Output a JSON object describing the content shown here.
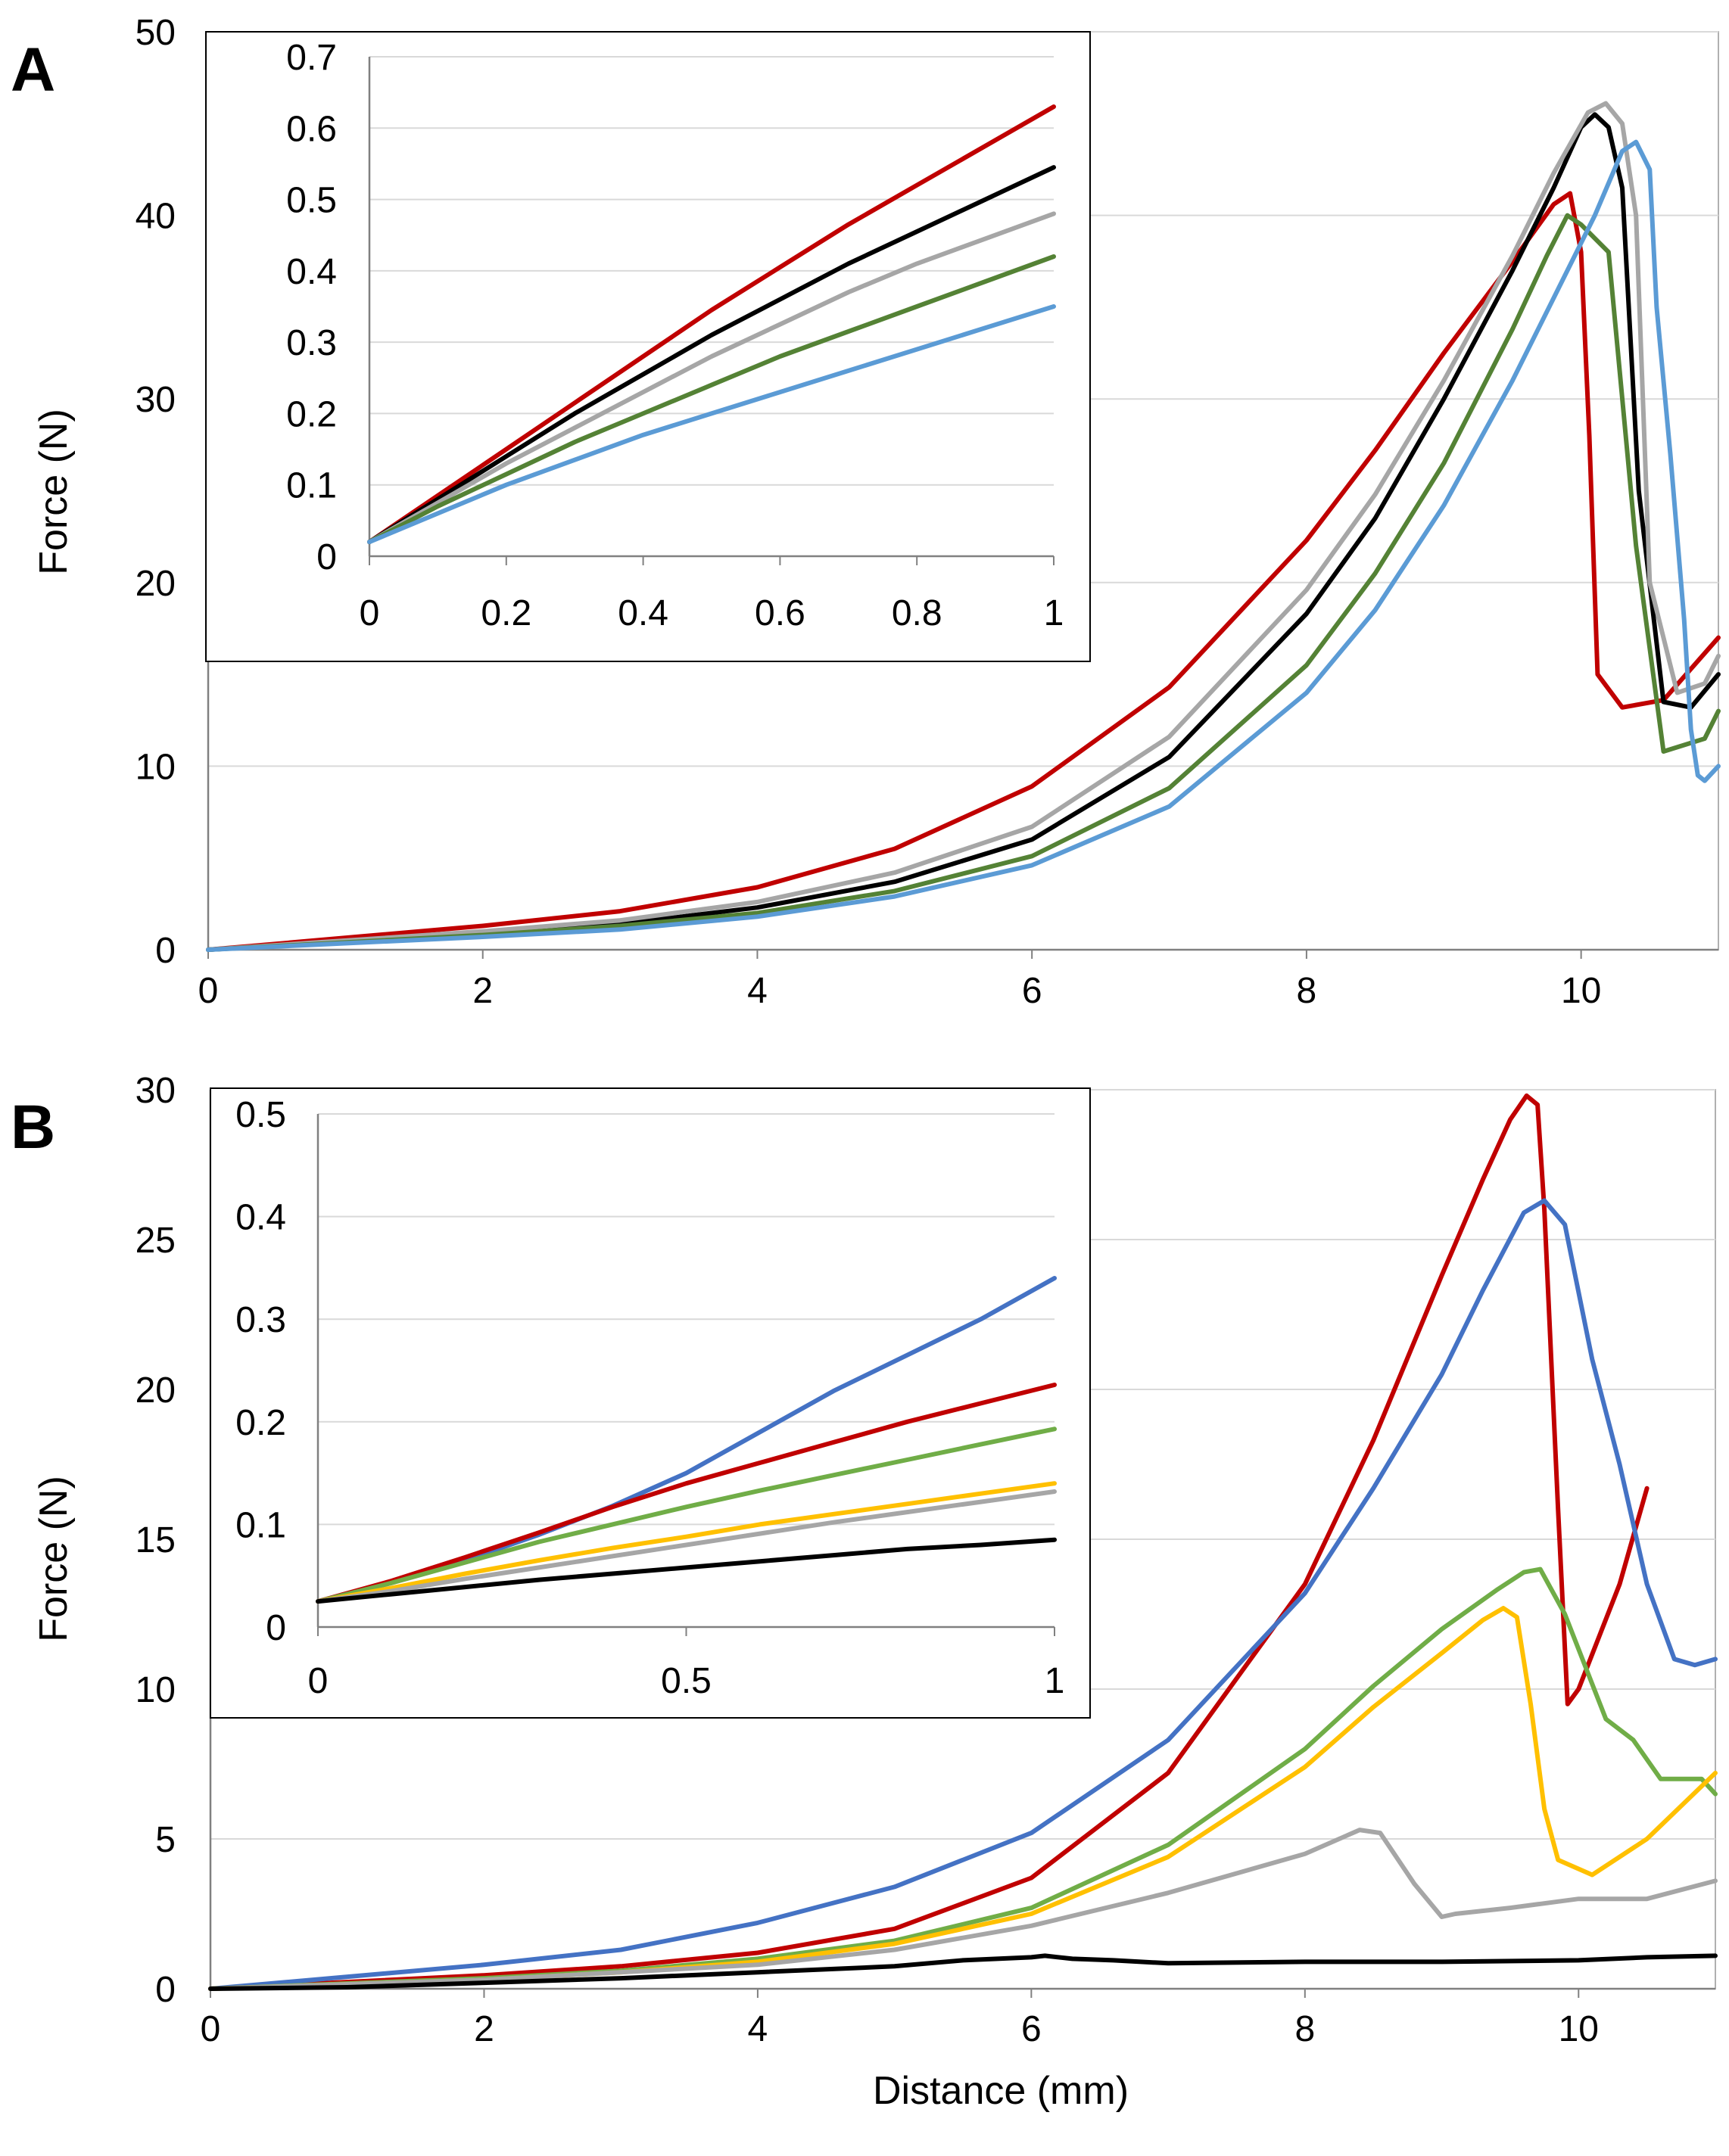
{
  "figure": {
    "panel_a_letter": "A",
    "panel_b_letter": "B"
  },
  "chart_data": [
    {
      "id": "A-main",
      "type": "line",
      "xlabel": "",
      "ylabel": "Force (N)",
      "xlim": [
        0,
        11
      ],
      "ylim": [
        0,
        50
      ],
      "xticks": [
        0,
        2,
        4,
        6,
        8,
        10
      ],
      "yticks": [
        0,
        10,
        20,
        30,
        40,
        50
      ],
      "xtick_labels": [
        "0",
        "2",
        "4",
        "6",
        "8",
        "10"
      ],
      "ytick_labels": [
        "0",
        "10",
        "20",
        "30",
        "40",
        "50"
      ],
      "grid": "horizontal",
      "series": [
        {
          "name": "red",
          "color": "#c00000",
          "x": [
            0,
            2,
            3,
            4,
            5,
            6,
            7,
            8,
            8.5,
            9,
            9.5,
            9.8,
            9.92,
            10.0,
            10.06,
            10.12,
            10.3,
            10.6,
            11
          ],
          "y": [
            0,
            1.3,
            2.1,
            3.4,
            5.5,
            8.9,
            14.3,
            22.3,
            27.2,
            32.5,
            37.5,
            40.6,
            41.2,
            38,
            28,
            15,
            13.2,
            13.6,
            17
          ]
        },
        {
          "name": "black",
          "color": "#000000",
          "x": [
            0,
            2,
            3,
            4,
            5,
            6,
            7,
            8,
            8.5,
            9,
            9.5,
            9.8,
            10.0,
            10.1,
            10.2,
            10.3,
            10.42,
            10.6,
            10.8,
            11
          ],
          "y": [
            0,
            0.9,
            1.4,
            2.3,
            3.7,
            6.0,
            10.5,
            18.3,
            23.5,
            30.0,
            37.0,
            41.5,
            44.8,
            45.5,
            44.8,
            41.5,
            25,
            13.5,
            13.2,
            15
          ]
        },
        {
          "name": "gray",
          "color": "#a6a6a6",
          "x": [
            0,
            2,
            3,
            4,
            5,
            6,
            7,
            8,
            8.5,
            9,
            9.5,
            9.8,
            10.05,
            10.18,
            10.3,
            10.4,
            10.5,
            10.7,
            10.9,
            11
          ],
          "y": [
            0,
            1.0,
            1.6,
            2.6,
            4.2,
            6.7,
            11.6,
            19.6,
            24.8,
            31.0,
            37.8,
            42.3,
            45.6,
            46.1,
            45.0,
            40,
            20,
            14.0,
            14.5,
            16
          ]
        },
        {
          "name": "green",
          "color": "#548235",
          "x": [
            0,
            2,
            3,
            4,
            5,
            6,
            7,
            8,
            8.5,
            9,
            9.5,
            9.75,
            9.9,
            10.0,
            10.2,
            10.4,
            10.6,
            10.9,
            11
          ],
          "y": [
            0,
            0.8,
            1.3,
            2.0,
            3.2,
            5.1,
            8.8,
            15.5,
            20.5,
            26.5,
            33.8,
            37.8,
            40.0,
            39.5,
            38,
            22,
            10.8,
            11.5,
            13
          ]
        },
        {
          "name": "light-blue",
          "color": "#5b9bd5",
          "x": [
            0,
            2,
            3,
            4,
            5,
            6,
            7,
            8,
            8.5,
            9,
            9.5,
            9.8,
            10.1,
            10.3,
            10.4,
            10.5,
            10.55,
            10.65,
            10.75,
            10.8,
            10.85,
            10.9,
            11
          ],
          "y": [
            0,
            0.7,
            1.1,
            1.8,
            2.9,
            4.6,
            7.8,
            14.0,
            18.5,
            24.2,
            31.0,
            35.5,
            40.0,
            43.5,
            44.0,
            42.5,
            35,
            27,
            18,
            12,
            9.5,
            9.2,
            10
          ]
        }
      ]
    },
    {
      "id": "A-inset",
      "type": "line",
      "xlim": [
        0,
        1
      ],
      "ylim": [
        0,
        0.7
      ],
      "xticks": [
        0,
        0.2,
        0.4,
        0.6,
        0.8,
        1
      ],
      "yticks": [
        0,
        0.1,
        0.2,
        0.3,
        0.4,
        0.5,
        0.6,
        0.7
      ],
      "xtick_labels": [
        "0",
        "0.2",
        "0.4",
        "0.6",
        "0.8",
        "1"
      ],
      "ytick_labels": [
        "0",
        "0.1",
        "0.2",
        "0.3",
        "0.4",
        "0.5",
        "0.6",
        "0.7"
      ],
      "grid": "horizontal",
      "series": [
        {
          "name": "red",
          "color": "#c00000",
          "x": [
            0,
            0.1,
            0.2,
            0.3,
            0.4,
            0.5,
            0.6,
            0.7,
            0.8,
            0.9,
            1.0
          ],
          "y": [
            0.02,
            0.085,
            0.15,
            0.215,
            0.28,
            0.345,
            0.405,
            0.465,
            0.52,
            0.575,
            0.63
          ]
        },
        {
          "name": "black",
          "color": "#000000",
          "x": [
            0,
            0.1,
            0.2,
            0.3,
            0.4,
            0.5,
            0.6,
            0.7,
            0.8,
            0.9,
            1.0
          ],
          "y": [
            0.02,
            0.08,
            0.14,
            0.2,
            0.255,
            0.31,
            0.36,
            0.41,
            0.455,
            0.5,
            0.545
          ]
        },
        {
          "name": "gray",
          "color": "#a6a6a6",
          "x": [
            0,
            0.1,
            0.2,
            0.3,
            0.4,
            0.5,
            0.6,
            0.7,
            0.8,
            0.9,
            1.0
          ],
          "y": [
            0.02,
            0.075,
            0.13,
            0.18,
            0.23,
            0.28,
            0.325,
            0.37,
            0.41,
            0.445,
            0.48
          ]
        },
        {
          "name": "green",
          "color": "#548235",
          "x": [
            0,
            0.1,
            0.2,
            0.3,
            0.4,
            0.5,
            0.6,
            0.7,
            0.8,
            0.9,
            1.0
          ],
          "y": [
            0.02,
            0.07,
            0.115,
            0.16,
            0.2,
            0.24,
            0.28,
            0.315,
            0.35,
            0.385,
            0.42
          ]
        },
        {
          "name": "light-blue",
          "color": "#5b9bd5",
          "x": [
            0,
            0.1,
            0.2,
            0.3,
            0.4,
            0.5,
            0.6,
            0.7,
            0.8,
            0.9,
            1.0
          ],
          "y": [
            0.02,
            0.06,
            0.1,
            0.135,
            0.17,
            0.2,
            0.23,
            0.26,
            0.29,
            0.32,
            0.35
          ]
        }
      ]
    },
    {
      "id": "B-main",
      "type": "line",
      "xlabel": "Distance (mm)",
      "ylabel": "Force (N)",
      "xlim": [
        0,
        11
      ],
      "ylim": [
        0,
        30
      ],
      "xticks": [
        0,
        2,
        4,
        6,
        8,
        10
      ],
      "yticks": [
        0,
        5,
        10,
        15,
        20,
        25,
        30
      ],
      "xtick_labels": [
        "0",
        "2",
        "4",
        "6",
        "8",
        "10"
      ],
      "ytick_labels": [
        "0",
        "5",
        "10",
        "15",
        "20",
        "25",
        "30"
      ],
      "grid": "horizontal",
      "series": [
        {
          "name": "red",
          "color": "#c00000",
          "x": [
            0,
            2,
            3,
            4,
            5,
            6,
            7,
            8,
            8.5,
            9,
            9.3,
            9.5,
            9.62,
            9.7,
            9.75,
            9.85,
            9.92,
            10.0,
            10.3,
            10.5
          ],
          "y": [
            0,
            0.45,
            0.75,
            1.2,
            2.0,
            3.7,
            7.2,
            13.5,
            18.3,
            23.8,
            27.0,
            29.0,
            29.8,
            29.5,
            26,
            16,
            9.5,
            10,
            13.5,
            16.7
          ]
        },
        {
          "name": "blue",
          "color": "#4472c4",
          "x": [
            0,
            2,
            3,
            4,
            5,
            6,
            7,
            8,
            8.5,
            9,
            9.3,
            9.6,
            9.75,
            9.9,
            10.1,
            10.3,
            10.5,
            10.7,
            10.85,
            11
          ],
          "y": [
            0,
            0.8,
            1.3,
            2.2,
            3.4,
            5.2,
            8.3,
            13.2,
            16.7,
            20.5,
            23.3,
            25.9,
            26.3,
            25.5,
            21.0,
            17.5,
            13.5,
            11.0,
            10.8,
            11
          ]
        },
        {
          "name": "green",
          "color": "#70ad47",
          "x": [
            0,
            2,
            3,
            4,
            5,
            6,
            7,
            8,
            8.5,
            9,
            9.4,
            9.6,
            9.72,
            9.9,
            10.2,
            10.4,
            10.6,
            10.9,
            11
          ],
          "y": [
            0,
            0.35,
            0.6,
            1.0,
            1.6,
            2.7,
            4.8,
            8.0,
            10.1,
            12.0,
            13.3,
            13.9,
            14.0,
            12.5,
            9.0,
            8.3,
            7.0,
            7.0,
            6.5
          ]
        },
        {
          "name": "yellow",
          "color": "#ffc000",
          "x": [
            0,
            2,
            3,
            4,
            5,
            6,
            7,
            8,
            8.5,
            9,
            9.3,
            9.45,
            9.55,
            9.65,
            9.75,
            9.85,
            10.1,
            10.5,
            11
          ],
          "y": [
            0,
            0.3,
            0.55,
            0.9,
            1.5,
            2.5,
            4.4,
            7.4,
            9.4,
            11.2,
            12.3,
            12.7,
            12.4,
            9.5,
            6.0,
            4.3,
            3.8,
            5.0,
            7.2
          ]
        },
        {
          "name": "gray",
          "color": "#a6a6a6",
          "x": [
            0,
            2,
            4,
            5,
            6,
            7,
            8,
            8.4,
            8.55,
            8.8,
            9.0,
            9.1,
            9.5,
            10.0,
            10.5,
            11
          ],
          "y": [
            0,
            0.3,
            0.8,
            1.3,
            2.1,
            3.2,
            4.5,
            5.3,
            5.2,
            3.5,
            2.4,
            2.5,
            2.7,
            3.0,
            3.0,
            3.6
          ]
        },
        {
          "name": "black",
          "color": "#000000",
          "x": [
            0,
            1,
            2,
            3,
            4,
            5,
            5.5,
            6,
            6.1,
            6.3,
            6.6,
            7.0,
            8,
            9,
            10,
            10.5,
            11
          ],
          "y": [
            0,
            0.05,
            0.2,
            0.35,
            0.55,
            0.75,
            0.95,
            1.05,
            1.1,
            1.0,
            0.95,
            0.85,
            0.9,
            0.9,
            0.95,
            1.05,
            1.1
          ]
        }
      ]
    },
    {
      "id": "B-inset",
      "type": "line",
      "xlim": [
        0,
        1
      ],
      "ylim": [
        0,
        0.5
      ],
      "xticks": [
        0,
        0.5,
        1
      ],
      "yticks": [
        0,
        0.1,
        0.2,
        0.3,
        0.4,
        0.5
      ],
      "xtick_labels": [
        "0",
        "0.5",
        "1"
      ],
      "ytick_labels": [
        "0",
        "0.1",
        "0.2",
        "0.3",
        "0.4",
        "0.5"
      ],
      "grid": "horizontal",
      "series": [
        {
          "name": "blue",
          "color": "#4472c4",
          "x": [
            0,
            0.1,
            0.2,
            0.3,
            0.4,
            0.5,
            0.6,
            0.7,
            0.8,
            0.9,
            1.0
          ],
          "y": [
            0.025,
            0.043,
            0.065,
            0.09,
            0.118,
            0.15,
            0.19,
            0.23,
            0.265,
            0.3,
            0.34
          ]
        },
        {
          "name": "red",
          "color": "#c00000",
          "x": [
            0,
            0.1,
            0.2,
            0.3,
            0.4,
            0.5,
            0.6,
            0.7,
            0.8,
            0.9,
            1.0
          ],
          "y": [
            0.025,
            0.045,
            0.068,
            0.092,
            0.117,
            0.14,
            0.16,
            0.18,
            0.2,
            0.218,
            0.236
          ]
        },
        {
          "name": "green",
          "color": "#70ad47",
          "x": [
            0,
            0.1,
            0.2,
            0.3,
            0.4,
            0.5,
            0.6,
            0.7,
            0.8,
            0.9,
            1.0
          ],
          "y": [
            0.025,
            0.043,
            0.063,
            0.083,
            0.1,
            0.117,
            0.133,
            0.148,
            0.163,
            0.178,
            0.193
          ]
        },
        {
          "name": "yellow",
          "color": "#ffc000",
          "x": [
            0,
            0.1,
            0.2,
            0.3,
            0.4,
            0.5,
            0.6,
            0.7,
            0.8,
            0.9,
            1.0
          ],
          "y": [
            0.025,
            0.038,
            0.052,
            0.065,
            0.077,
            0.088,
            0.1,
            0.11,
            0.12,
            0.13,
            0.14
          ]
        },
        {
          "name": "gray",
          "color": "#a6a6a6",
          "x": [
            0,
            0.1,
            0.2,
            0.3,
            0.4,
            0.5,
            0.6,
            0.7,
            0.8,
            0.9,
            1.0
          ],
          "y": [
            0.025,
            0.035,
            0.047,
            0.058,
            0.069,
            0.08,
            0.091,
            0.102,
            0.112,
            0.122,
            0.132
          ]
        },
        {
          "name": "black",
          "color": "#000000",
          "x": [
            0,
            0.1,
            0.2,
            0.3,
            0.4,
            0.5,
            0.6,
            0.7,
            0.8,
            0.9,
            1.0
          ],
          "y": [
            0.025,
            0.032,
            0.039,
            0.046,
            0.052,
            0.058,
            0.064,
            0.07,
            0.076,
            0.08,
            0.085
          ]
        }
      ]
    }
  ]
}
